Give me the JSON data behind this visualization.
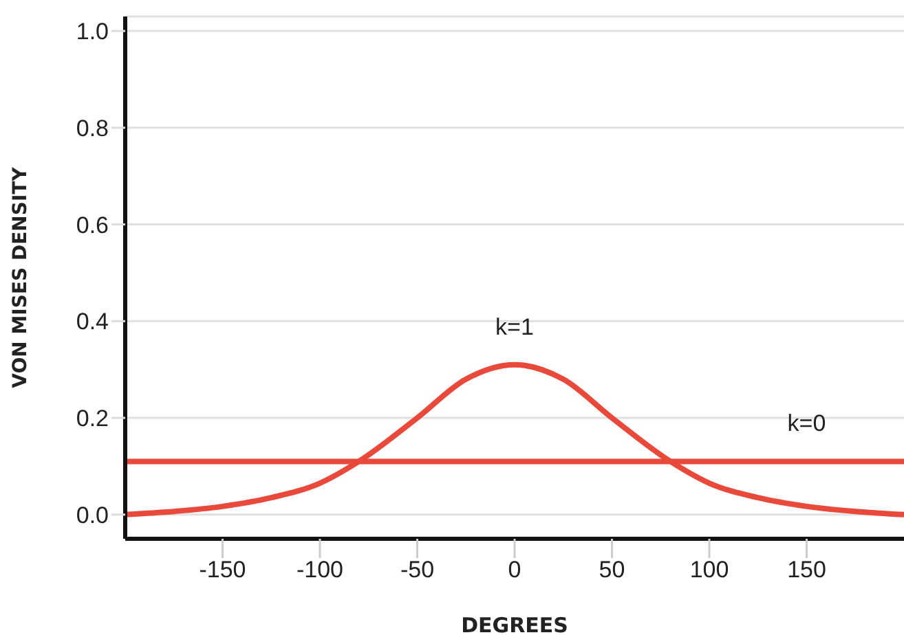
{
  "chart_data": {
    "type": "line",
    "xlabel": "DEGREES",
    "ylabel": "VON MISES DENSITY",
    "xlim": [
      -200,
      200
    ],
    "xticks": [
      -150,
      -100,
      -50,
      0,
      50,
      100,
      150
    ],
    "ylim": [
      -0.05,
      1.03
    ],
    "yticks": [
      {
        "value": 0,
        "label": "0.0"
      },
      0.2,
      0.4,
      0.6,
      0.8,
      {
        "value": 1,
        "label": "1.0"
      }
    ],
    "grid": "y",
    "marker": "none",
    "line_style": "solid",
    "series": [
      {
        "name": "k=1",
        "color": "#e8493a",
        "x": [
          -200,
          -180,
          -150,
          -125,
          -100,
          -80,
          -50,
          -25,
          0,
          25,
          50,
          80,
          100,
          125,
          150,
          180,
          200
        ],
        "values": [
          0,
          0.005,
          0.017,
          0.035,
          0.065,
          0.11,
          0.2,
          0.28,
          0.31,
          0.28,
          0.2,
          0.11,
          0.065,
          0.035,
          0.017,
          0.005,
          0
        ]
      },
      {
        "name": "k=0",
        "color": "#e8493a",
        "x": [
          -200,
          150,
          200
        ],
        "values": [
          0.11,
          0.11,
          0.11
        ]
      }
    ]
  }
}
